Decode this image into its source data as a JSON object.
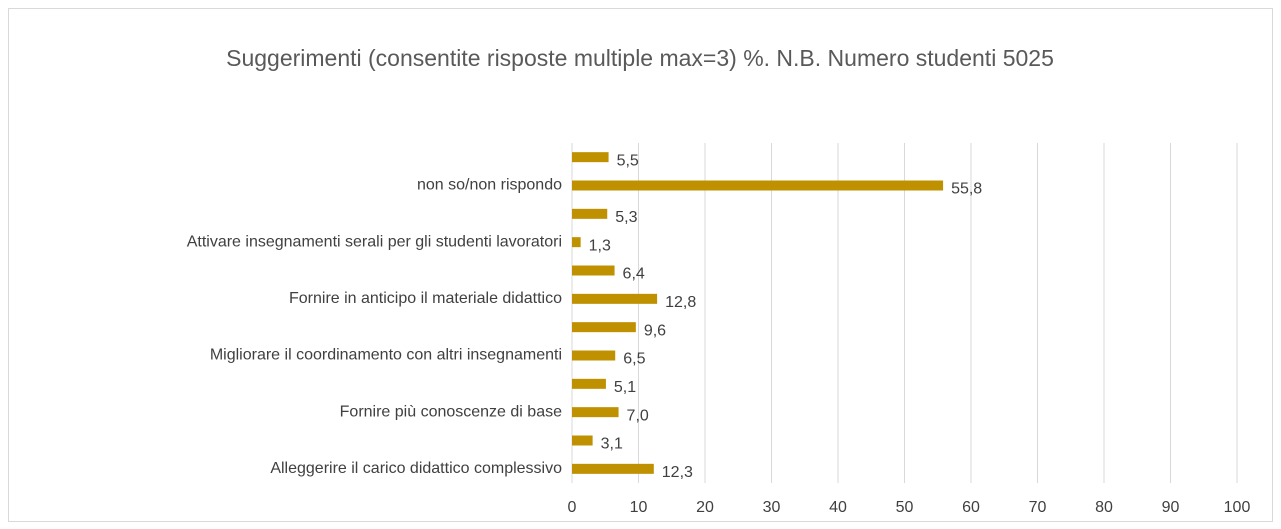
{
  "chart_data": {
    "type": "bar",
    "orientation": "horizontal",
    "title": "Suggerimenti (consentite risposte multiple max=3) %. N.B. Numero studenti 5025",
    "categories": [
      "Alleggerire il carico didattico complessivo",
      null,
      "Fornire più conoscenze di base",
      null,
      "Migliorare il coordinamento con altri insegnamenti",
      null,
      "Fornire in anticipo il materiale didattico",
      null,
      "Attivare insegnamenti serali per gli studenti lavoratori",
      null,
      "non so/non rispondo",
      null
    ],
    "values": [
      12.3,
      3.1,
      7.0,
      5.1,
      6.5,
      9.6,
      12.8,
      6.4,
      1.3,
      5.3,
      55.8,
      5.5
    ],
    "value_labels": [
      "12,3",
      "3,1",
      "7,0",
      "5,1",
      "6,5",
      "9,6",
      "12,8",
      "6,4",
      "1,3",
      "5,3",
      "55,8",
      "5,5"
    ],
    "color": "#bf9000",
    "xlim": [
      0,
      100
    ],
    "xticks": [
      0,
      10,
      20,
      30,
      40,
      50,
      60,
      70,
      80,
      90,
      100
    ],
    "grid": true
  }
}
